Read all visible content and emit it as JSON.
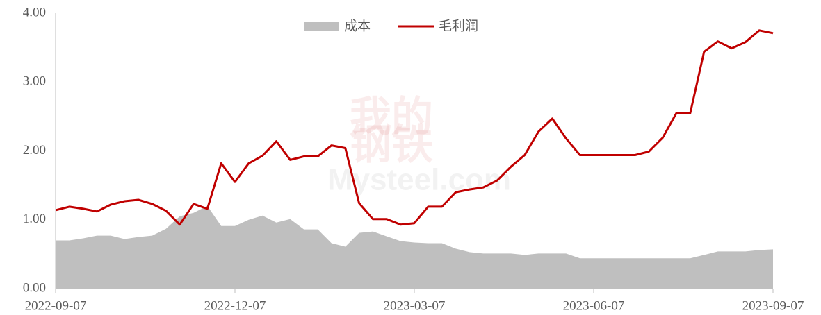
{
  "chart_data": {
    "type": "area_line",
    "watermark": [
      "我的",
      "钢铁",
      "Mysteel.com"
    ],
    "categories": [
      "2022-09-07",
      null,
      null,
      null,
      null,
      null,
      null,
      null,
      null,
      null,
      null,
      null,
      null,
      "2022-12-07",
      null,
      null,
      null,
      null,
      null,
      null,
      null,
      null,
      null,
      null,
      null,
      null,
      "2023-03-07",
      null,
      null,
      null,
      null,
      null,
      null,
      null,
      null,
      null,
      null,
      null,
      null,
      "2023-06-07",
      null,
      null,
      null,
      null,
      null,
      null,
      null,
      null,
      null,
      null,
      null,
      null,
      "2023-09-07"
    ],
    "series": [
      {
        "name": "成本",
        "type": "area",
        "color": "#bfbfbf",
        "values": [
          0.7,
          0.7,
          0.73,
          0.77,
          0.77,
          0.72,
          0.75,
          0.77,
          0.87,
          1.05,
          1.1,
          1.2,
          0.91,
          0.91,
          1.0,
          1.06,
          0.96,
          1.01,
          0.86,
          0.86,
          0.66,
          0.61,
          0.81,
          0.83,
          0.76,
          0.69,
          0.67,
          0.66,
          0.66,
          0.58,
          0.53,
          0.51,
          0.51,
          0.51,
          0.49,
          0.51,
          0.51,
          0.51,
          0.44,
          0.44,
          0.44,
          0.44,
          0.44,
          0.44,
          0.44,
          0.44,
          0.44,
          0.49,
          0.54,
          0.54,
          0.54,
          0.56,
          0.57
        ]
      },
      {
        "name": "毛利润",
        "type": "line",
        "color": "#c00000",
        "values": [
          1.14,
          1.19,
          1.16,
          1.12,
          1.22,
          1.27,
          1.29,
          1.23,
          1.13,
          0.93,
          1.23,
          1.16,
          1.82,
          1.55,
          1.82,
          1.93,
          2.14,
          1.87,
          1.92,
          1.92,
          2.08,
          2.04,
          1.24,
          1.01,
          1.01,
          0.93,
          0.95,
          1.19,
          1.19,
          1.4,
          1.44,
          1.47,
          1.57,
          1.77,
          1.94,
          2.28,
          2.47,
          2.18,
          1.94,
          1.94,
          1.94,
          1.94,
          1.94,
          1.99,
          2.19,
          2.55,
          2.55,
          3.44,
          3.59,
          3.49,
          3.58,
          3.75,
          3.71
        ]
      }
    ],
    "ylim": [
      0,
      4
    ],
    "yticks": [
      {
        "value": 0,
        "label": "0.00"
      },
      {
        "value": 1,
        "label": "1.00"
      },
      {
        "value": 2,
        "label": "2.00"
      },
      {
        "value": 3,
        "label": "3.00"
      },
      {
        "value": 4,
        "label": "4.00"
      }
    ],
    "legend": "top"
  }
}
